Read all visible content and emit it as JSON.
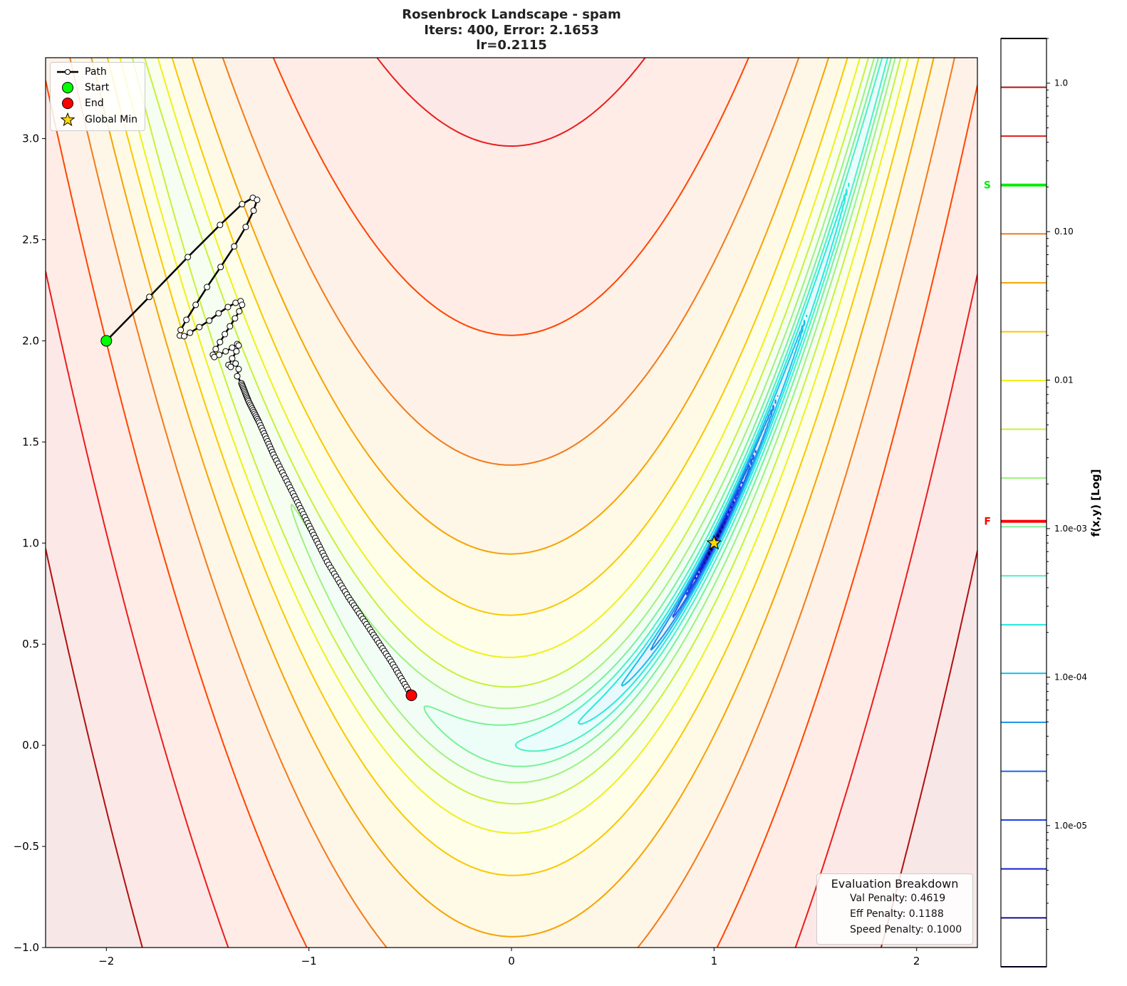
{
  "chart_data": {
    "type": "contour",
    "title_lines": [
      "Rosenbrock Landscape - spam",
      "Iters: 400, Error: 2.1653",
      "lr=0.2115"
    ],
    "function": "(1-x)^2 + 100(y-x^2)^2",
    "xlim": [
      -2.3,
      2.3
    ],
    "ylim": [
      -1.0,
      3.4
    ],
    "x_ticks": [
      -2,
      -1,
      0,
      1,
      2
    ],
    "x_tick_labels": [
      "−2",
      "−1",
      "0",
      "1",
      "2"
    ],
    "y_ticks": [
      -1.0,
      -0.5,
      0.0,
      0.5,
      1.0,
      1.5,
      2.0,
      2.5,
      3.0
    ],
    "y_tick_labels": [
      "−1.0",
      "−0.5",
      "0.0",
      "0.5",
      "1.0",
      "1.5",
      "2.0",
      "2.5",
      "3.0"
    ],
    "contour_levels": [
      4000,
      1875,
      879,
      412,
      193,
      90.5,
      42.4,
      19.9,
      9.33,
      4.37,
      2.05,
      0.961,
      0.45,
      0.211,
      0.099,
      0.0464,
      0.0218,
      0.0102,
      0.00478,
      0.00224
    ],
    "level_colors": [
      "#2a0000",
      "#b01010",
      "#e81e1e",
      "#ff4500",
      "#f27a1a",
      "#f5a300",
      "#f9c800",
      "#f0f020",
      "#c8f03c",
      "#a0f080",
      "#7af098",
      "#4cf0c4",
      "#2ae8dc",
      "#14c0f0",
      "#1a90e8",
      "#2060f0",
      "#2040e8",
      "#1020d0",
      "#101090",
      "#000044"
    ],
    "path": {
      "label": "Path",
      "points": [
        [
          -2,
          2
        ],
        [
          -1.788,
          2.217
        ],
        [
          -1.598,
          2.414
        ],
        [
          -1.439,
          2.573
        ],
        [
          -1.33,
          2.676
        ],
        [
          -1.277,
          2.707
        ],
        [
          -1.256,
          2.697
        ],
        [
          -1.273,
          2.644
        ],
        [
          -1.312,
          2.563
        ],
        [
          -1.369,
          2.467
        ],
        [
          -1.436,
          2.365
        ],
        [
          -1.503,
          2.266
        ],
        [
          -1.559,
          2.178
        ],
        [
          -1.605,
          2.104
        ],
        [
          -1.633,
          2.054
        ],
        [
          -1.637,
          2.026
        ],
        [
          -1.616,
          2.023
        ],
        [
          -1.587,
          2.04
        ],
        [
          -1.541,
          2.068
        ],
        [
          -1.492,
          2.1
        ],
        [
          -1.446,
          2.136
        ],
        [
          -1.4,
          2.167
        ],
        [
          -1.362,
          2.188
        ],
        [
          -1.337,
          2.196
        ],
        [
          -1.33,
          2.178
        ],
        [
          -1.344,
          2.146
        ],
        [
          -1.365,
          2.111
        ],
        [
          -1.39,
          2.072
        ],
        [
          -1.415,
          2.033
        ],
        [
          -1.439,
          1.994
        ],
        [
          -1.46,
          1.959
        ],
        [
          -1.474,
          1.931
        ],
        [
          -1.467,
          1.92
        ],
        [
          -1.443,
          1.931
        ],
        [
          -1.411,
          1.948
        ],
        [
          -1.379,
          1.966
        ],
        [
          -1.354,
          1.984
        ],
        [
          -1.347,
          1.977
        ],
        [
          -1.358,
          1.948
        ],
        [
          -1.379,
          1.913
        ],
        [
          -1.397,
          1.881
        ],
        [
          -1.386,
          1.871
        ],
        [
          -1.362,
          1.888
        ],
        [
          -1.347,
          1.86
        ],
        [
          -1.354,
          1.825
        ],
        [
          -1.333,
          1.79
        ],
        [
          -1.298,
          1.701
        ],
        [
          -1.245,
          1.595
        ],
        [
          -1.175,
          1.437
        ],
        [
          -1.086,
          1.26
        ],
        [
          -0.998,
          1.084
        ],
        [
          -0.91,
          0.907
        ],
        [
          -0.804,
          0.731
        ],
        [
          -0.698,
          0.572
        ],
        [
          -0.593,
          0.413
        ],
        [
          -0.494,
          0.247
        ]
      ]
    },
    "start": {
      "label": "Start",
      "x": -2,
      "y": 2,
      "color": "#00ff00"
    },
    "end": {
      "label": "End",
      "x": -0.494,
      "y": 0.247,
      "color": "#ff0000"
    },
    "global_min": {
      "label": "Global Min",
      "x": 1,
      "y": 1,
      "color": "#ffd700"
    },
    "legend_placement": "upper-left",
    "colorbar": {
      "label": "f(x,y) [Log]",
      "scale": "log",
      "range": [
        1.12e-06,
        2.0
      ],
      "ticks": [
        1.0,
        0.1,
        0.01,
        0.001,
        0.0001,
        1e-05
      ],
      "tick_labels": [
        "1.0",
        "0.10",
        "0.01",
        "1.0e-03",
        "1.0e-04",
        "1.0e-05"
      ],
      "level_values": [
        2.0,
        0.938,
        0.44,
        0.206,
        0.0966,
        0.0453,
        0.0212,
        0.00995,
        0.00467,
        0.00219,
        0.00103,
        0.000481,
        0.000225,
        0.000106,
        4.96e-05,
        2.32e-05,
        1.09e-05,
        5.11e-06,
        2.39e-06,
        1.12e-06
      ],
      "markers": [
        {
          "label": "S",
          "value": 0.206,
          "color": "#00ee00"
        },
        {
          "label": "F",
          "value": 0.00112,
          "color": "#ff0000"
        }
      ]
    },
    "evaluation": {
      "title": "Evaluation Breakdown",
      "lines": [
        "Val Penalty: 0.4619",
        "Eff Penalty: 0.1188",
        "Speed Penalty: 0.1000"
      ]
    }
  }
}
